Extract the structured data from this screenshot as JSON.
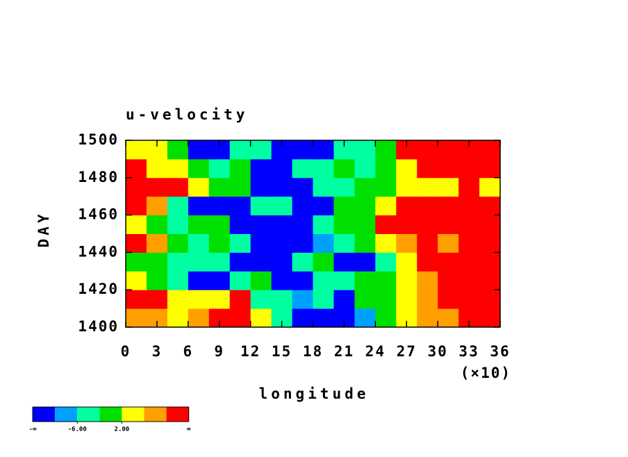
{
  "chart_data": {
    "type": "heatmap",
    "title": "u-velocity",
    "x_label": "longitude",
    "y_label": "DAY",
    "x_multiplier": "(×10)",
    "x": [
      10,
      30,
      50,
      70,
      90,
      110,
      130,
      150,
      170,
      190,
      210,
      230,
      250,
      270,
      290,
      310,
      330,
      350
    ],
    "y": [
      1405,
      1415,
      1425,
      1435,
      1445,
      1455,
      1465,
      1475,
      1485,
      1495
    ],
    "values": [
      [
        6,
        8,
        4,
        9,
        12,
        11,
        5,
        -6,
        -12,
        -13,
        -11,
        -9,
        0,
        3,
        6,
        8,
        12,
        11
      ],
      [
        12,
        11,
        5,
        4,
        3,
        12,
        -3,
        -5,
        -8,
        -4,
        -12,
        -2,
        0,
        2,
        8,
        12,
        12,
        13
      ],
      [
        2,
        0,
        -3,
        -11,
        -12,
        -5,
        -2,
        -12,
        -11,
        -6,
        -3,
        -1,
        1,
        4,
        9,
        12,
        13,
        11
      ],
      [
        1,
        -2,
        -4,
        -3,
        -5,
        -11,
        -12,
        -13,
        -6,
        -2,
        -11,
        -12,
        -3,
        2,
        12,
        12,
        11,
        12
      ],
      [
        11,
        8,
        -2,
        -4,
        -1,
        -3,
        -12,
        -11,
        -12,
        -10,
        -5,
        0,
        3,
        7,
        12,
        8,
        12,
        13
      ],
      [
        2,
        -1,
        -3,
        0,
        -2,
        -11,
        -12,
        -13,
        -11,
        -6,
        -2,
        1,
        12,
        11,
        13,
        12,
        12,
        11
      ],
      [
        12,
        9,
        -4,
        -11,
        -12,
        -12,
        -3,
        -4,
        -11,
        -12,
        -2,
        0,
        2,
        12,
        12,
        13,
        12,
        12
      ],
      [
        12,
        13,
        12,
        4,
        1,
        -2,
        -12,
        -13,
        -11,
        -5,
        -3,
        -1,
        1,
        3,
        2,
        5,
        11,
        3
      ],
      [
        11,
        4,
        2,
        -1,
        -3,
        -2,
        -11,
        -12,
        -6,
        -4,
        -2,
        -3,
        0,
        2,
        12,
        13,
        12,
        12
      ],
      [
        5,
        2,
        -2,
        -11,
        -12,
        -3,
        -5,
        -12,
        -13,
        -11,
        -6,
        -3,
        -2,
        12,
        11,
        13,
        12,
        12
      ]
    ],
    "levels": [
      -10,
      -6,
      -2,
      2,
      6,
      10
    ],
    "colors": [
      "#0000ff",
      "#00a0ff",
      "#00ffa0",
      "#00e000",
      "#ffff00",
      "#ffa000",
      "#ff0000"
    ],
    "colorbar_labels": [
      {
        "value": -6,
        "label": "-6.00"
      },
      {
        "value": 2,
        "label": "2.00"
      }
    ],
    "colorbar_min_label": "-∞",
    "colorbar_max_label": "∞",
    "xlim": [
      0,
      360
    ],
    "xticks": [
      {
        "value": 0,
        "label": "0"
      },
      {
        "value": 30,
        "label": "3"
      },
      {
        "value": 60,
        "label": "6"
      },
      {
        "value": 90,
        "label": "9"
      },
      {
        "value": 120,
        "label": "12"
      },
      {
        "value": 150,
        "label": "15"
      },
      {
        "value": 180,
        "label": "18"
      },
      {
        "value": 210,
        "label": "21"
      },
      {
        "value": 240,
        "label": "24"
      },
      {
        "value": 270,
        "label": "27"
      },
      {
        "value": 300,
        "label": "30"
      },
      {
        "value": 330,
        "label": "33"
      },
      {
        "value": 360,
        "label": "36"
      }
    ],
    "ylim": [
      1400,
      1500
    ],
    "yticks": [
      1400,
      1420,
      1440,
      1460,
      1480,
      1500
    ]
  }
}
